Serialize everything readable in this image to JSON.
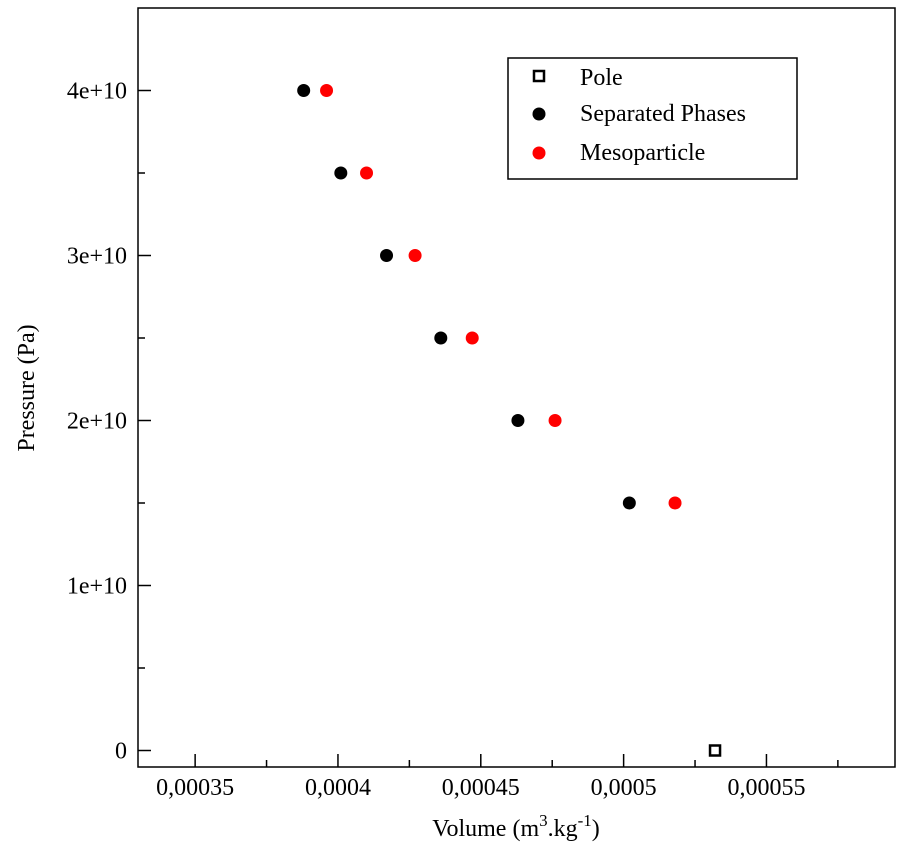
{
  "chart_data": {
    "type": "scatter",
    "title": "",
    "xlabel": "Volume (m",
    "xlabel_sup1": "3",
    "xlabel_mid": ".kg",
    "xlabel_sup2": "-1",
    "xlabel_end": ")",
    "ylabel": "Pressure (Pa)",
    "xlim": [
      0.00033,
      0.000595
    ],
    "ylim": [
      -1000000000,
      45000000000
    ],
    "xticks": [
      {
        "value": 0.00035,
        "label": "0,00035"
      },
      {
        "value": 0.0004,
        "label": "0,0004"
      },
      {
        "value": 0.00045,
        "label": "0,00045"
      },
      {
        "value": 0.0005,
        "label": "0,0005"
      },
      {
        "value": 0.00055,
        "label": "0,00055"
      }
    ],
    "xminor": [
      0.000375,
      0.000425,
      0.000475,
      0.000525,
      0.000575
    ],
    "yticks": [
      {
        "value": 0,
        "label": "0"
      },
      {
        "value": 10000000000,
        "label": "1e+10"
      },
      {
        "value": 20000000000,
        "label": "2e+10"
      },
      {
        "value": 30000000000,
        "label": "3e+10"
      },
      {
        "value": 40000000000,
        "label": "4e+10"
      }
    ],
    "yminor": [
      5000000000,
      15000000000,
      25000000000,
      35000000000
    ],
    "grid": false,
    "legend_position": "top-right",
    "series": [
      {
        "name": "Pole",
        "marker": "open-square",
        "color": "#000000",
        "points": [
          {
            "x": 0.000532,
            "y": 0
          }
        ]
      },
      {
        "name": "Separated Phases",
        "marker": "filled-circle",
        "color": "#000000",
        "points": [
          {
            "x": 0.000388,
            "y": 40000000000
          },
          {
            "x": 0.000401,
            "y": 35000000000
          },
          {
            "x": 0.000417,
            "y": 30000000000
          },
          {
            "x": 0.000436,
            "y": 25000000000
          },
          {
            "x": 0.000463,
            "y": 20000000000
          },
          {
            "x": 0.000502,
            "y": 15000000000
          }
        ]
      },
      {
        "name": "Mesoparticle",
        "marker": "filled-circle",
        "color": "#ff0000",
        "points": [
          {
            "x": 0.000396,
            "y": 40000000000
          },
          {
            "x": 0.00041,
            "y": 35000000000
          },
          {
            "x": 0.000427,
            "y": 30000000000
          },
          {
            "x": 0.000447,
            "y": 25000000000
          },
          {
            "x": 0.000476,
            "y": 20000000000
          },
          {
            "x": 0.000518,
            "y": 15000000000
          }
        ]
      }
    ]
  }
}
